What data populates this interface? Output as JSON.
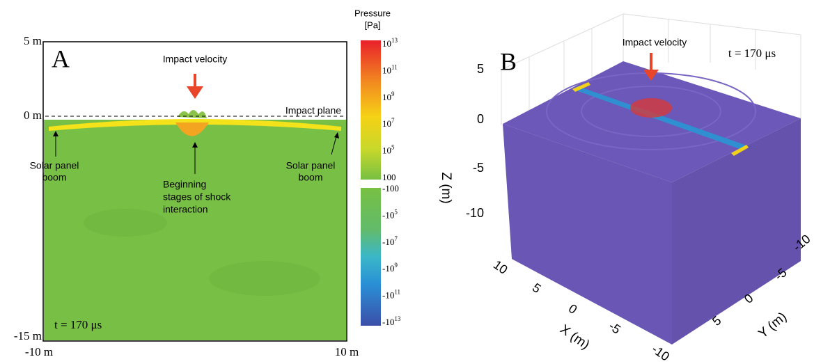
{
  "panel_a": {
    "label": "A",
    "y_top": "5 m",
    "y_zero": "0 m",
    "y_bottom": "-15 m",
    "x_left": "-10 m",
    "x_right": "10 m",
    "impact_velocity": "Impact velocity",
    "impact_plane": "Impact plane",
    "boom_left": [
      "Solar panel",
      "boom"
    ],
    "boom_right": [
      "Solar panel",
      "boom"
    ],
    "shock": [
      "Beginning",
      "stages of shock",
      "interaction"
    ],
    "time": "t = 170 μs"
  },
  "colorbar": {
    "title": [
      "Pressure",
      "[Pa]"
    ],
    "positive": [
      {
        "base": "10",
        "exp": "13"
      },
      {
        "base": "10",
        "exp": "11"
      },
      {
        "base": "10",
        "exp": "9"
      },
      {
        "base": "10",
        "exp": "7"
      },
      {
        "base": "10",
        "exp": "5"
      },
      {
        "base": "100"
      }
    ],
    "negative": [
      {
        "base": "-100"
      },
      {
        "base": "-10",
        "exp": "5"
      },
      {
        "base": "-10",
        "exp": "7"
      },
      {
        "base": "-10",
        "exp": "9"
      },
      {
        "base": "-10",
        "exp": "11"
      },
      {
        "base": "-10",
        "exp": "13"
      }
    ]
  },
  "panel_b": {
    "label": "B",
    "impact_velocity": "Impact velocity",
    "time": "t = 170 μs",
    "z_label": "Z (m)",
    "x_label": "X (m)",
    "y_label": "Y (m)",
    "z_ticks": [
      "5",
      "0",
      "-5",
      "-10"
    ],
    "x_ticks": [
      "10",
      "5",
      "0",
      "-5",
      "-10"
    ],
    "y_ticks": [
      "5",
      "0",
      "-5",
      "-10"
    ]
  }
}
